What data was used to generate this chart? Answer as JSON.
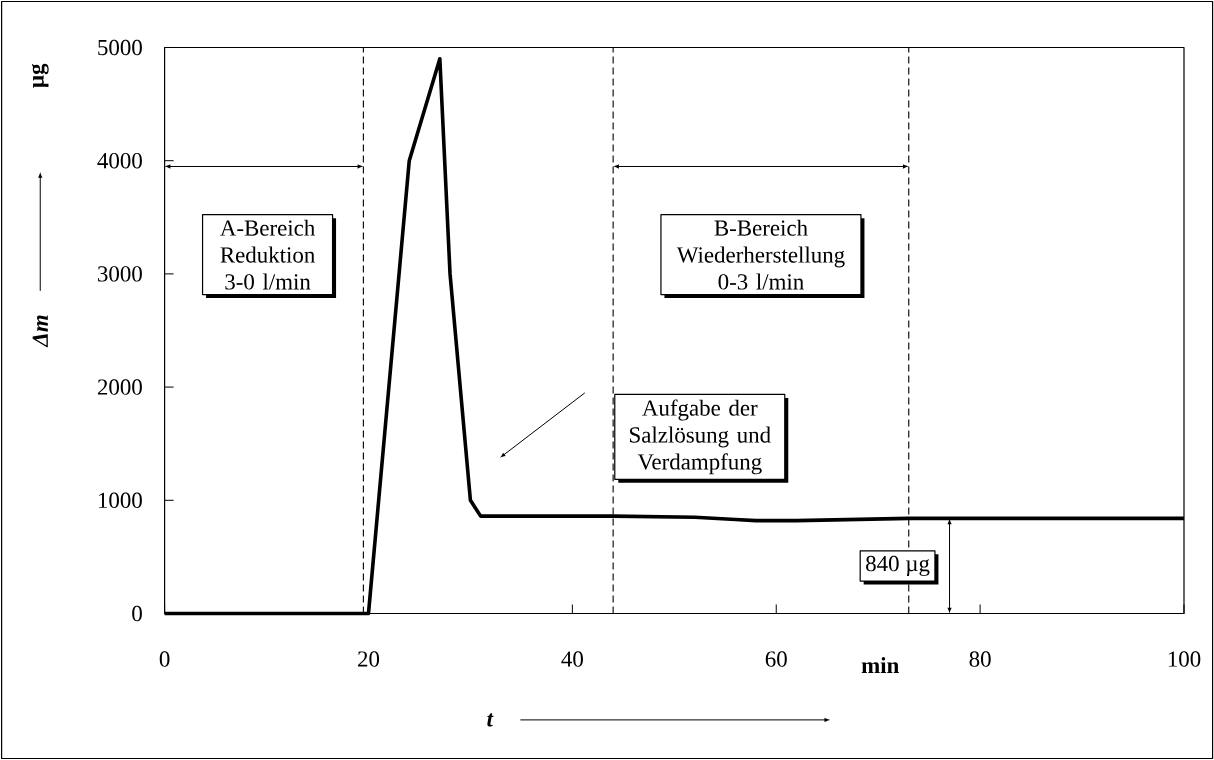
{
  "chart_data": {
    "type": "line",
    "xlabel": "t",
    "ylabel": "Δm",
    "xlim": [
      0,
      100
    ],
    "ylim": [
      0,
      5000
    ],
    "xticks": [
      0,
      20,
      40,
      60,
      80,
      100
    ],
    "yticks": [
      0,
      1000,
      2000,
      3000,
      4000,
      5000
    ],
    "x": [
      0,
      20,
      24,
      27,
      28,
      30,
      31,
      44,
      52,
      56,
      58,
      62,
      73,
      100
    ],
    "values": [
      0,
      0,
      4000,
      4900,
      3000,
      1000,
      860,
      860,
      850,
      830,
      820,
      820,
      840,
      840
    ],
    "color": "#000000",
    "line_style": "solid",
    "ref_lines": [
      {
        "axis": "x",
        "value": 19.5,
        "line_style": "dashed"
      },
      {
        "axis": "x",
        "value": 44,
        "line_style": "dashed"
      },
      {
        "axis": "x",
        "value": 73,
        "line_style": "dashed"
      }
    ],
    "annotations": [
      "A-Bereich Reduktion 3-0 l/min",
      "B-Bereich Wiederherstellung 0-3 l/min",
      "µg",
      "min",
      "Aufgabe der Salzlösung und Verdampfung",
      {
        "text": "840 µg",
        "x": 77,
        "y": 840
      }
    ]
  }
}
